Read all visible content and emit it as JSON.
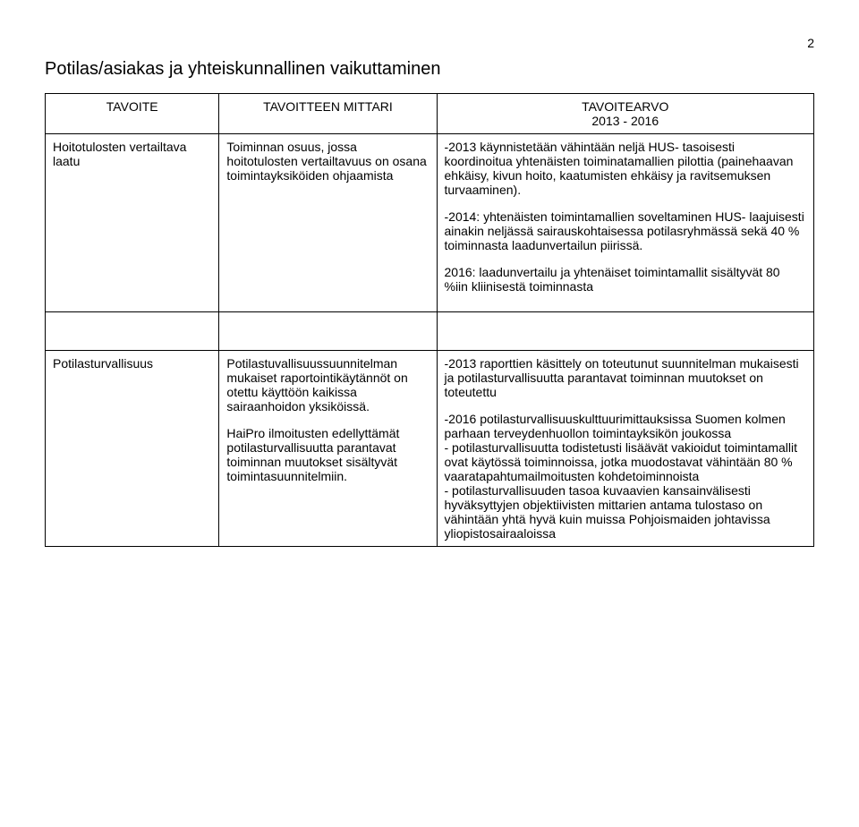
{
  "page_number": "2",
  "heading": "Potilas/asiakas ja yhteiskunnallinen vaikuttaminen",
  "headers": {
    "col1": "TAVOITE",
    "col2": "TAVOITTEEN MITTARI",
    "col3_line1": "TAVOITEARVO",
    "col3_line2": "2013 - 2016"
  },
  "row1": {
    "c1": "Hoitotulosten vertailtava laatu",
    "c2": "Toiminnan osuus, jossa hoitotulosten vertailtavuus on osana toimintayksiköiden ohjaamista",
    "c3_p1": "-2013 käynnistetään vähintään neljä HUS- tasoisesti koordinoitua yhtenäisten toiminatamallien pilottia (painehaavan ehkäisy, kivun hoito, kaatumisten ehkäisy ja ravitsemuksen turvaaminen).",
    "c3_p2": "-2014: yhtenäisten toimintamallien soveltaminen HUS- laajuisesti ainakin neljässä sairauskohtaisessa potilasryhmässä sekä 40 % toiminnasta laadunvertailun piirissä.",
    "c3_p3": "2016: laadunvertailu ja yhtenäiset toimintamallit sisältyvät 80 %iin kliinisestä toiminnasta"
  },
  "row2": {
    "c1": "Potilasturvallisuus",
    "c2_p1": "Potilastuvallisuussuunnitelman mukaiset raportointikäytännöt on otettu käyttöön kaikissa sairaanhoidon yksiköissä.",
    "c2_p2": "HaiPro ilmoitusten edellyttämät potilasturvallisuutta parantavat toiminnan muutokset sisältyvät toimintasuunnitelmiin.",
    "c3_p1": "-2013 raporttien käsittely on toteutunut suunnitelman mukaisesti ja potilasturvallisuutta parantavat toiminnan muutokset on toteutettu",
    "c3_p2": "-2016 potilasturvallisuuskulttuurimittauksissa Suomen kolmen parhaan terveydenhuollon toimintayksikön joukossa",
    "c3_p3": "- potilasturvallisuutta todistetusti lisäävät vakioidut toimintamallit ovat käytössä toiminnoissa, jotka muodostavat vähintään 80 % vaaratapahtumailmoitusten kohdetoiminnoista",
    "c3_p4": "- potilasturvallisuuden tasoa kuvaavien kansainvälisesti hyväksyttyjen objektiivisten mittarien antama tulostaso on vähintään yhtä hyvä kuin muissa Pohjoismaiden johtavissa yliopistosairaaloissa"
  }
}
